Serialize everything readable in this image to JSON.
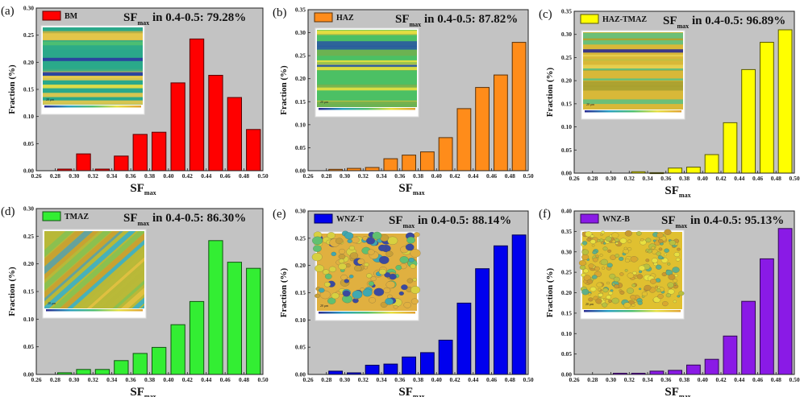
{
  "figure": {
    "xlabel_main": "SF",
    "xlabel_sub": "max",
    "ylabel": "Fraction (%)",
    "annotation_prefix": "SF",
    "annotation_sub": "max",
    "annotation_mid": " in 0.4-0.5: "
  },
  "chart_data": [
    {
      "type": "bar",
      "panel_label": "(a)",
      "legend": "BM",
      "color": "#ff0000",
      "annotation_value": "79.28%",
      "inset": "EBSD Schmid factor map (BM)",
      "xlabel": "SFmax",
      "ylabel": "Fraction (%)",
      "xlim": [
        0.26,
        0.5
      ],
      "ylim": [
        0,
        0.3
      ],
      "xticks": [
        "0.26",
        "0.28",
        "0.30",
        "0.32",
        "0.34",
        "0.36",
        "0.38",
        "0.40",
        "0.42",
        "0.44",
        "0.46",
        "0.48",
        "0.50"
      ],
      "yticks": [
        "0.00",
        "0.05",
        "0.10",
        "0.15",
        "0.20",
        "0.25",
        "0.30"
      ],
      "categories": [
        0.27,
        0.29,
        0.31,
        0.33,
        0.35,
        0.37,
        0.39,
        0.41,
        0.43,
        0.45,
        0.47,
        0.49
      ],
      "values": [
        0,
        0.003,
        0.031,
        0.003,
        0.027,
        0.067,
        0.071,
        0.162,
        0.243,
        0.176,
        0.135,
        0.076
      ],
      "legend_position": "top-left"
    },
    {
      "type": "bar",
      "panel_label": "(b)",
      "legend": "HAZ",
      "color": "#ff8c1a",
      "annotation_value": "87.82%",
      "inset": "EBSD Schmid factor map (HAZ)",
      "xlabel": "SFmax",
      "ylabel": "Fraction (%)",
      "xlim": [
        0.26,
        0.5
      ],
      "ylim": [
        0,
        0.35
      ],
      "xticks": [
        "0.26",
        "0.28",
        "0.30",
        "0.32",
        "0.34",
        "0.36",
        "0.38",
        "0.40",
        "0.42",
        "0.44",
        "0.46",
        "0.48",
        "0.50"
      ],
      "yticks": [
        "0.00",
        "0.05",
        "0.10",
        "0.15",
        "0.20",
        "0.25",
        "0.30",
        "0.35"
      ],
      "categories": [
        0.27,
        0.29,
        0.31,
        0.33,
        0.35,
        0.37,
        0.39,
        0.41,
        0.43,
        0.45,
        0.47,
        0.49
      ],
      "values": [
        0,
        0.003,
        0.005,
        0.007,
        0.026,
        0.034,
        0.041,
        0.072,
        0.135,
        0.181,
        0.208,
        0.279
      ],
      "legend_position": "top-left"
    },
    {
      "type": "bar",
      "panel_label": "(c)",
      "legend": "HAZ-TMAZ",
      "color": "#ffff00",
      "annotation_value": "96.89%",
      "inset": "EBSD Schmid factor map (HAZ-TMAZ)",
      "xlabel": "SFmax",
      "ylabel": "Fraction (%)",
      "xlim": [
        0.26,
        0.5
      ],
      "ylim": [
        0,
        0.35
      ],
      "xticks": [
        "0.26",
        "0.28",
        "0.30",
        "0.32",
        "0.34",
        "0.36",
        "0.38",
        "0.40",
        "0.42",
        "0.44",
        "0.46",
        "0.48",
        "0.50"
      ],
      "yticks": [
        "0.00",
        "0.05",
        "0.10",
        "0.15",
        "0.20",
        "0.25",
        "0.30",
        "0.35"
      ],
      "categories": [
        0.27,
        0.29,
        0.31,
        0.33,
        0.35,
        0.37,
        0.39,
        0.41,
        0.43,
        0.45,
        0.47,
        0.49
      ],
      "values": [
        0,
        0,
        0,
        0.003,
        0.001,
        0.011,
        0.013,
        0.04,
        0.109,
        0.224,
        0.283,
        0.31
      ],
      "legend_position": "top-left"
    },
    {
      "type": "bar",
      "panel_label": "(d)",
      "legend": "TMAZ",
      "color": "#33ee33",
      "annotation_value": "86.30%",
      "inset": "EBSD Schmid factor map (TMAZ)",
      "xlabel": "SFmax",
      "ylabel": "Fraction (%)",
      "xlim": [
        0.26,
        0.5
      ],
      "ylim": [
        0,
        0.3
      ],
      "xticks": [
        "0.26",
        "0.28",
        "0.30",
        "0.32",
        "0.34",
        "0.36",
        "0.38",
        "0.40",
        "0.42",
        "0.44",
        "0.46",
        "0.48",
        "0.50"
      ],
      "yticks": [
        "0.00",
        "0.05",
        "0.10",
        "0.15",
        "0.20",
        "0.25",
        "0.30"
      ],
      "categories": [
        0.27,
        0.29,
        0.31,
        0.33,
        0.35,
        0.37,
        0.39,
        0.41,
        0.43,
        0.45,
        0.47,
        0.49
      ],
      "values": [
        0,
        0.003,
        0.009,
        0.009,
        0.025,
        0.038,
        0.049,
        0.09,
        0.132,
        0.242,
        0.203,
        0.192
      ],
      "legend_position": "top-left"
    },
    {
      "type": "bar",
      "panel_label": "(e)",
      "legend": "WNZ-T",
      "color": "#0000ee",
      "annotation_value": "88.14%",
      "inset": "EBSD Schmid factor map (WNZ-T)",
      "xlabel": "SFmax",
      "ylabel": "Fraction (%)",
      "xlim": [
        0.26,
        0.5
      ],
      "ylim": [
        0,
        0.3
      ],
      "xticks": [
        "0.26",
        "0.28",
        "0.30",
        "0.32",
        "0.34",
        "0.36",
        "0.38",
        "0.40",
        "0.42",
        "0.44",
        "0.46",
        "0.48",
        "0.50"
      ],
      "yticks": [
        "0.00",
        "0.05",
        "0.10",
        "0.15",
        "0.20",
        "0.25",
        "0.30"
      ],
      "categories": [
        0.27,
        0.29,
        0.31,
        0.33,
        0.35,
        0.37,
        0.39,
        0.41,
        0.43,
        0.45,
        0.47,
        0.49
      ],
      "values": [
        0,
        0.006,
        0.003,
        0.017,
        0.019,
        0.032,
        0.04,
        0.063,
        0.131,
        0.194,
        0.236,
        0.256
      ],
      "legend_position": "top-left"
    },
    {
      "type": "bar",
      "panel_label": "(f)",
      "legend": "WNZ-B",
      "color": "#8a1ae6",
      "annotation_value": "95.13%",
      "inset": "EBSD Schmid factor map (WNZ-B)",
      "xlabel": "SFmax",
      "ylabel": "Fraction (%)",
      "xlim": [
        0.26,
        0.5
      ],
      "ylim": [
        0,
        0.4
      ],
      "xticks": [
        "0.26",
        "0.28",
        "0.30",
        "0.32",
        "0.34",
        "0.36",
        "0.38",
        "0.40",
        "0.42",
        "0.44",
        "0.46",
        "0.48",
        "0.50"
      ],
      "yticks": [
        "0.00",
        "0.05",
        "0.10",
        "0.15",
        "0.20",
        "0.25",
        "0.30",
        "0.35",
        "0.40"
      ],
      "categories": [
        0.27,
        0.29,
        0.31,
        0.33,
        0.35,
        0.37,
        0.39,
        0.41,
        0.43,
        0.45,
        0.47,
        0.49
      ],
      "values": [
        0,
        0,
        0.003,
        0.003,
        0.008,
        0.01,
        0.023,
        0.037,
        0.094,
        0.179,
        0.283,
        0.357
      ],
      "legend_position": "top-left"
    }
  ]
}
